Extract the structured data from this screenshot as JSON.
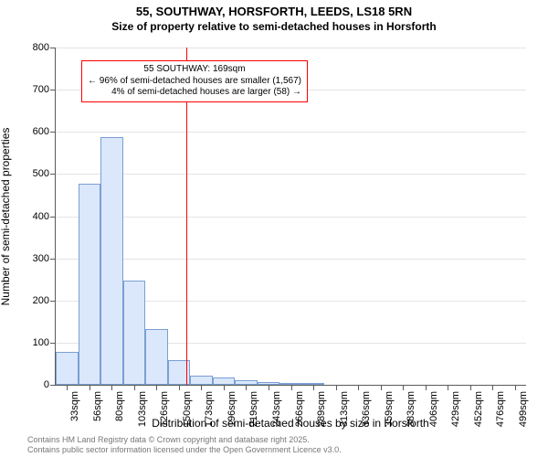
{
  "title": "55, SOUTHWAY, HORSFORTH, LEEDS, LS18 5RN",
  "subtitle": "Size of property relative to semi-detached houses in Horsforth",
  "y_axis": {
    "title": "Number of semi-detached properties",
    "min": 0,
    "max": 800,
    "step": 100,
    "grid_color": "#e4e4e4",
    "label_fontsize": 11
  },
  "x_axis": {
    "title": "Distribution of semi-detached houses by size in Horsforth",
    "labels": [
      "33sqm",
      "56sqm",
      "80sqm",
      "103sqm",
      "126sqm",
      "150sqm",
      "173sqm",
      "196sqm",
      "219sqm",
      "243sqm",
      "266sqm",
      "289sqm",
      "313sqm",
      "336sqm",
      "359sqm",
      "383sqm",
      "406sqm",
      "429sqm",
      "452sqm",
      "476sqm",
      "499sqm"
    ],
    "label_fontsize": 11
  },
  "bars": {
    "values": [
      78,
      478,
      588,
      248,
      132,
      58,
      22,
      18,
      10,
      7,
      5,
      4,
      0,
      0,
      0,
      0,
      0,
      0,
      0,
      0,
      0
    ],
    "fill": "#dbe7fb",
    "stroke": "#7a9fd4",
    "stroke_width": 1
  },
  "marker": {
    "position_index": 5.85,
    "color": "#ff0000",
    "width": 1
  },
  "annotation": {
    "line1": "55 SOUTHWAY: 169sqm",
    "line2": "← 96% of semi-detached houses are smaller (1,567)",
    "line3": "4% of semi-detached houses are larger (58) →",
    "border_color": "#ff0000",
    "fontsize": 10
  },
  "footer": {
    "line1": "Contains HM Land Registry data © Crown copyright and database right 2025.",
    "line2": "Contains public sector information licensed under the Open Government Licence v3.0."
  },
  "plot": {
    "background": "#ffffff",
    "axis_color": "#5b5b5b"
  }
}
